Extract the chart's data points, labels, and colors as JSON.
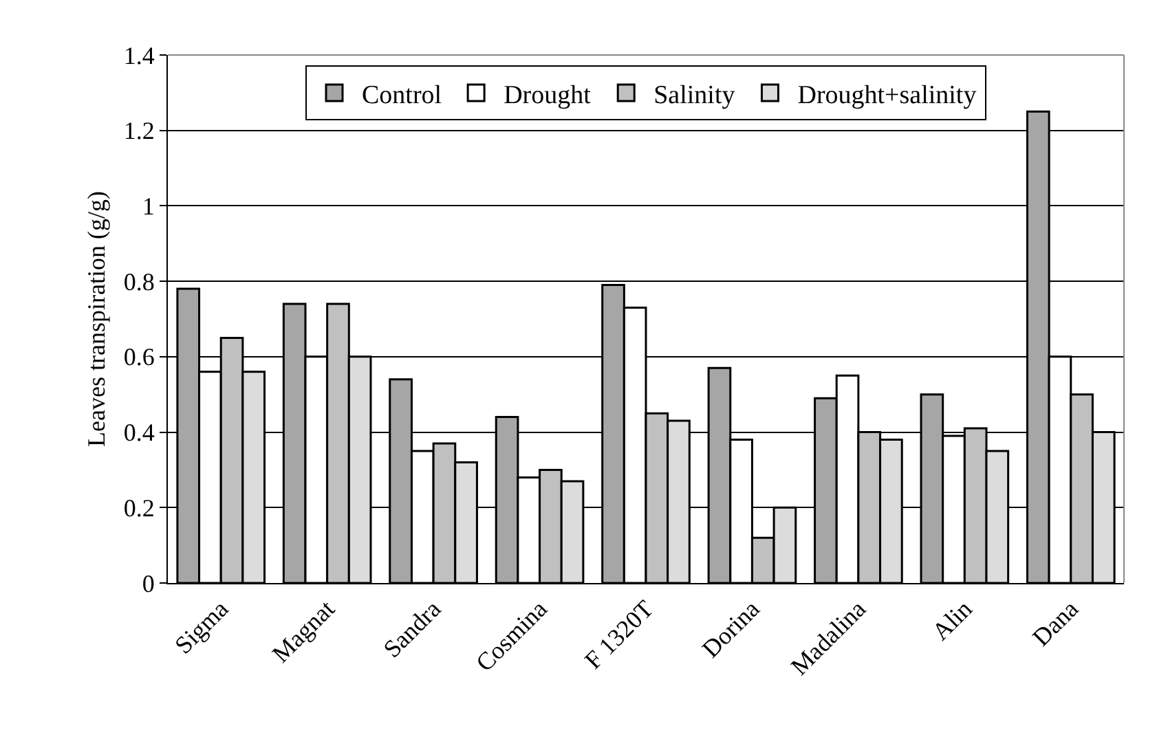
{
  "chart_data": {
    "type": "bar",
    "ylabel": "Leaves transpiration (g/g)",
    "categories": [
      "Sigma",
      "Magnat",
      "Sandra",
      "Cosmina",
      "F 1320T",
      "Dorina",
      "Madalina",
      "Alin",
      "Dana"
    ],
    "series": [
      {
        "name": "Control",
        "color": "#a6a6a6",
        "values": [
          0.78,
          0.74,
          0.54,
          0.44,
          0.79,
          0.57,
          0.49,
          0.5,
          1.25
        ]
      },
      {
        "name": "Drought",
        "color": "#ffffff",
        "values": [
          0.56,
          0.6,
          0.35,
          0.28,
          0.73,
          0.38,
          0.55,
          0.39,
          0.6
        ]
      },
      {
        "name": "Salinity",
        "color": "#c0c0c0",
        "values": [
          0.65,
          0.74,
          0.37,
          0.3,
          0.45,
          0.12,
          0.4,
          0.41,
          0.5
        ]
      },
      {
        "name": "Drought+salinity",
        "color": "#dcdcdc",
        "values": [
          0.56,
          0.6,
          0.32,
          0.27,
          0.43,
          0.2,
          0.38,
          0.35,
          0.4
        ]
      }
    ],
    "ylim": [
      0,
      1.4
    ],
    "yticks": [
      0,
      0.2,
      0.4,
      0.6,
      0.8,
      1,
      1.2,
      1.4
    ],
    "grid": "y",
    "legend": "top"
  }
}
